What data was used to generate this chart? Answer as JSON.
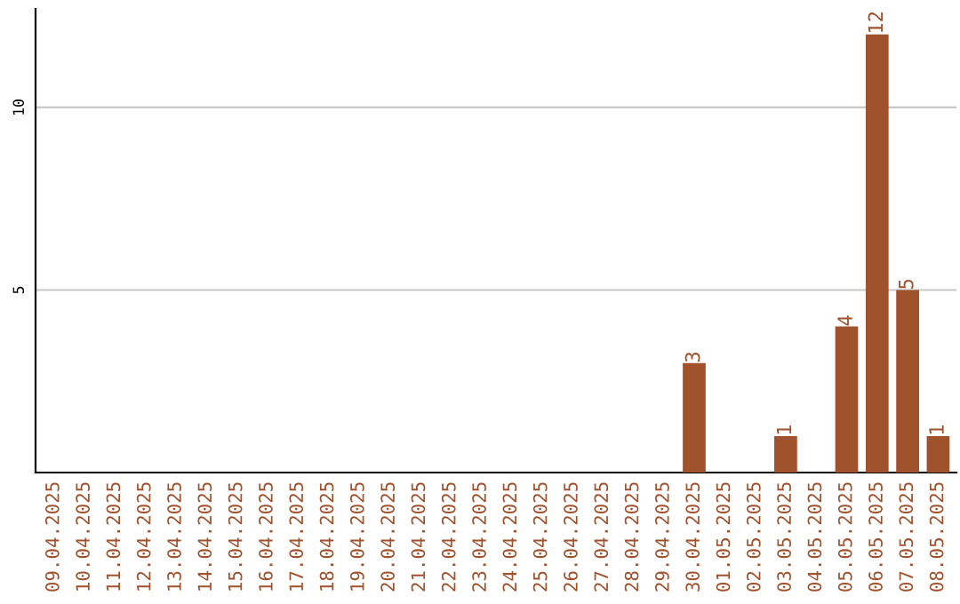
{
  "chart_data": {
    "type": "bar",
    "categories": [
      "09.04.2025",
      "10.04.2025",
      "11.04.2025",
      "12.04.2025",
      "13.04.2025",
      "14.04.2025",
      "15.04.2025",
      "16.04.2025",
      "17.04.2025",
      "18.04.2025",
      "19.04.2025",
      "20.04.2025",
      "21.04.2025",
      "22.04.2025",
      "23.04.2025",
      "24.04.2025",
      "25.04.2025",
      "26.04.2025",
      "27.04.2025",
      "28.04.2025",
      "29.04.2025",
      "30.04.2025",
      "01.05.2025",
      "02.05.2025",
      "03.05.2025",
      "04.05.2025",
      "05.05.2025",
      "06.05.2025",
      "07.05.2025",
      "08.05.2025"
    ],
    "values": [
      0,
      0,
      0,
      0,
      0,
      0,
      0,
      0,
      0,
      0,
      0,
      0,
      0,
      0,
      0,
      0,
      0,
      0,
      0,
      0,
      0,
      3,
      0,
      0,
      1,
      0,
      4,
      12,
      5,
      1
    ],
    "value_labels": [
      null,
      null,
      null,
      null,
      null,
      null,
      null,
      null,
      null,
      null,
      null,
      null,
      null,
      null,
      null,
      null,
      null,
      null,
      null,
      null,
      null,
      "3",
      null,
      null,
      "1",
      null,
      "4",
      "12",
      "5",
      "1"
    ],
    "color": "#a0522d",
    "ylim": [
      0,
      12.7
    ],
    "yticks": [
      5,
      10
    ],
    "grid": "y"
  }
}
